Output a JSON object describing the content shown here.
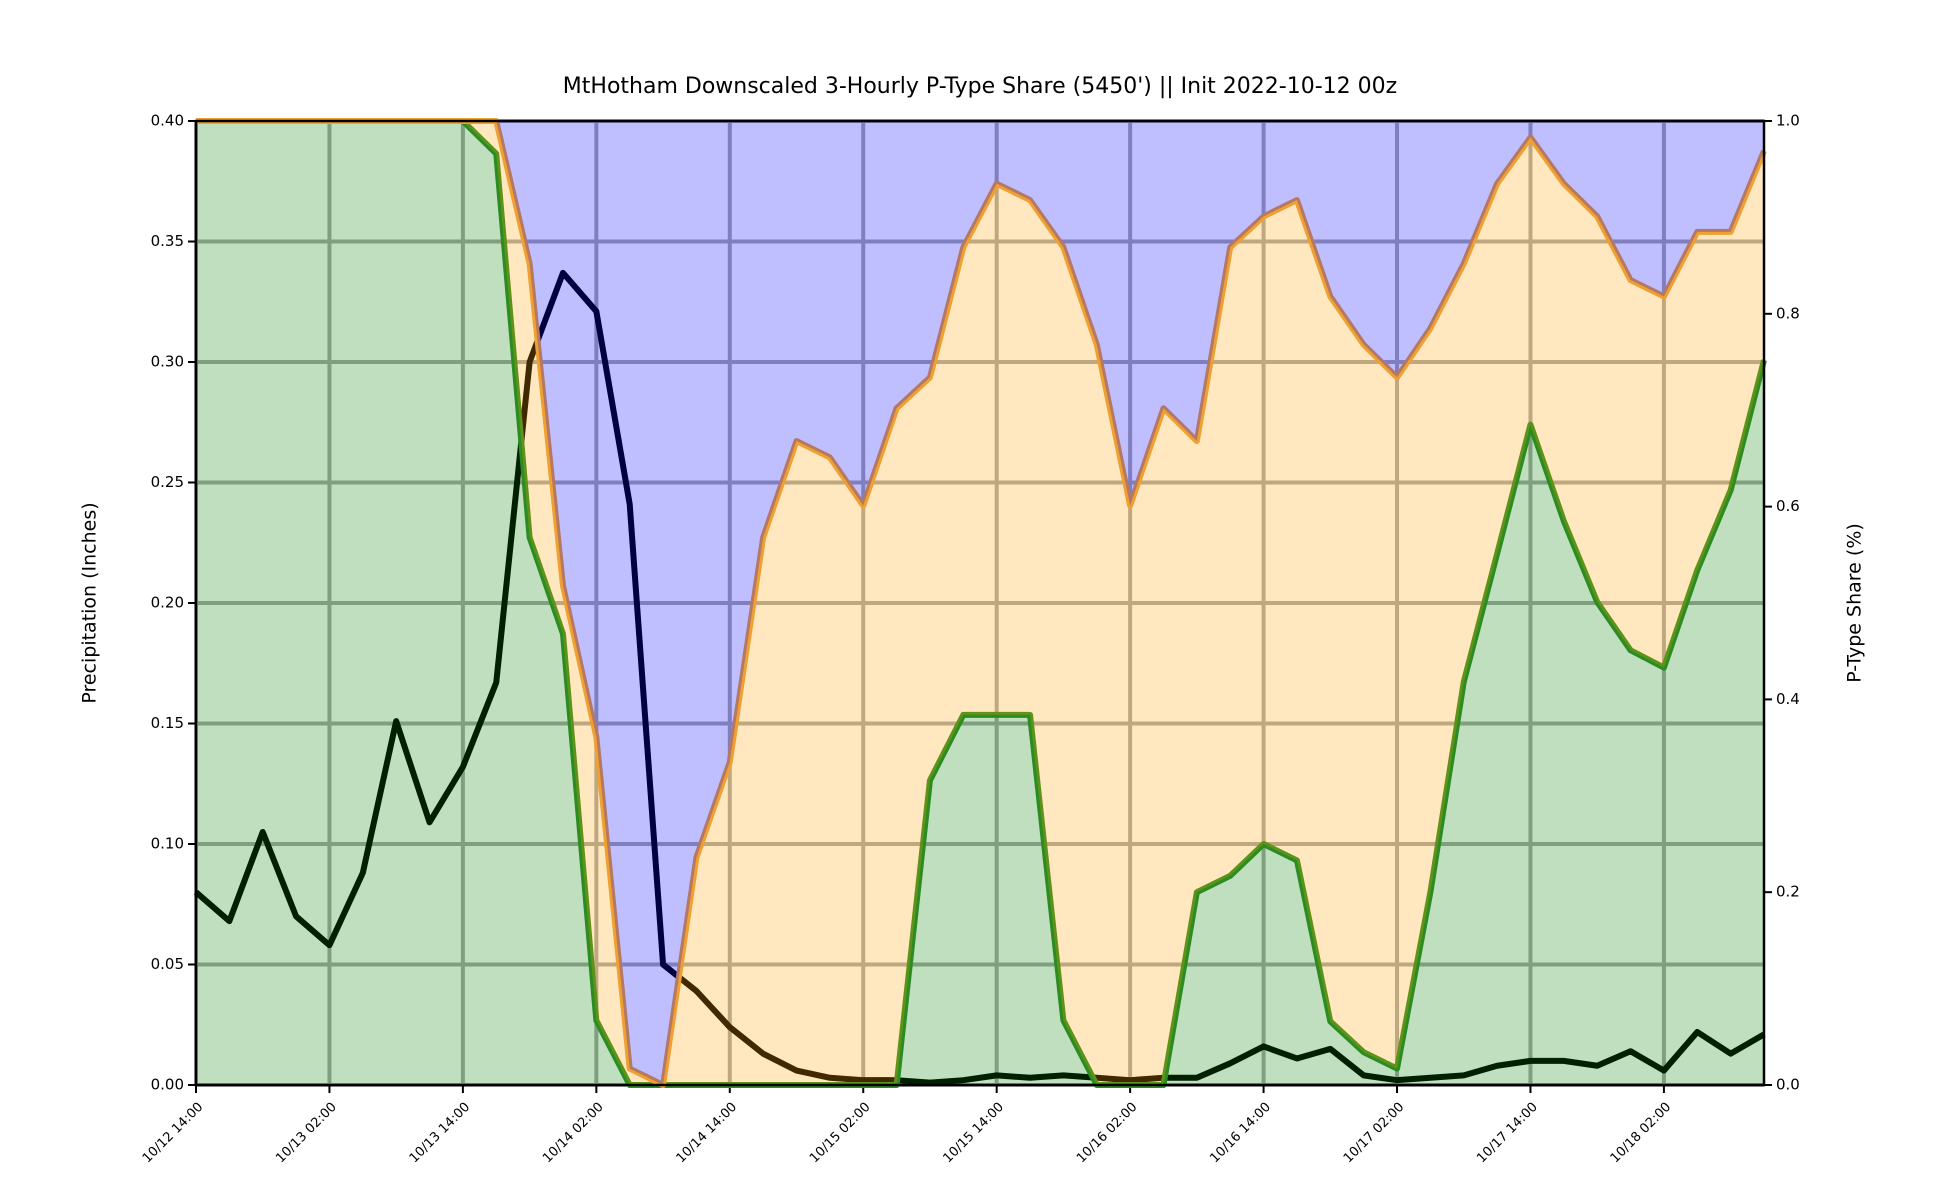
{
  "chart_data": {
    "type": "line",
    "title": "MtHotham Downscaled 3-Hourly P-Type Share (5450') || Init 2022-10-12 00z",
    "y_label": "Precipitation (Inches)",
    "y2_label": "P-Type Share (%)",
    "categories": [
      "10/12 14:00",
      null,
      null,
      null,
      "10/13 02:00",
      null,
      null,
      null,
      "10/13 14:00",
      null,
      null,
      null,
      "10/14 02:00",
      null,
      null,
      null,
      "10/14 14:00",
      null,
      null,
      null,
      "10/15 02:00",
      null,
      null,
      null,
      "10/15 14:00",
      null,
      null,
      null,
      "10/16 02:00",
      null,
      null,
      null,
      "10/16 14:00",
      null,
      null,
      null,
      "10/17 02:00",
      null,
      null,
      null,
      "10/17 14:00",
      null,
      null,
      null,
      "10/18 02:00",
      null,
      null,
      null
    ],
    "ylim": [
      0,
      0.4
    ],
    "yticks": [
      {
        "value": 0,
        "label": "0.00"
      },
      0.05,
      {
        "value": 0.1,
        "label": "0.10"
      },
      0.15,
      {
        "value": 0.2,
        "label": "0.20"
      },
      0.25,
      {
        "value": 0.3,
        "label": "0.30"
      },
      0.35,
      {
        "value": 0.4,
        "label": "0.40"
      }
    ],
    "y2lim": [
      0,
      1
    ],
    "y2ticks": [
      {
        "value": 0,
        "label": "0.0"
      },
      0.2,
      0.4,
      0.6,
      0.8,
      {
        "value": 1,
        "label": "1.0"
      }
    ],
    "grid": true,
    "grid_color": "#aaaaaa",
    "fill_opacity": 0.25,
    "series": [
      {
        "type": "line",
        "color": "#000000",
        "values": [
          0.08,
          0.068,
          0.105,
          0.07,
          0.058,
          0.088,
          0.151,
          0.109,
          0.132,
          0.167,
          0.3,
          0.337,
          0.321,
          0.241,
          0.05,
          0.039,
          0.024,
          0.013,
          0.006,
          0.003,
          0.002,
          0.002,
          0.001,
          0.002,
          0.004,
          0.003,
          0.004,
          0.003,
          0.002,
          0.003,
          0.003,
          0.009,
          0.016,
          0.011,
          0.015,
          0.004,
          0.002,
          0.003,
          0.004,
          0.008,
          0.01,
          0.01,
          0.008,
          0.014,
          0.006,
          0.022,
          0.013,
          0.021
        ]
      },
      {
        "type": "area",
        "axis": "y2",
        "color": "#008000",
        "line_color": "#2a8c22",
        "values": [
          1,
          1,
          1,
          1,
          1,
          1,
          1,
          1,
          1,
          0.966,
          0.568,
          0.468,
          0.067,
          0,
          0,
          0,
          0,
          0,
          0,
          0,
          0,
          0,
          0.316,
          0.384,
          0.384,
          0.384,
          0.067,
          0,
          0,
          0,
          0.2,
          0.217,
          0.25,
          0.233,
          0.066,
          0.034,
          0.017,
          0.2,
          0.418,
          0.551,
          0.685,
          0.585,
          0.501,
          0.451,
          0.433,
          0.534,
          0.617,
          0.752
        ]
      },
      {
        "type": "area",
        "axis": "y2",
        "color": "#ffa500",
        "line_color": "#f0a030",
        "values": [
          0,
          0,
          0,
          0,
          0,
          0,
          0,
          0,
          0,
          0.034,
          0.284,
          0.05,
          0.294,
          0.017,
          0,
          0.236,
          0.335,
          0.568,
          0.668,
          0.651,
          0.601,
          0.702,
          0.418,
          0.485,
          0.551,
          0.534,
          0.802,
          0.768,
          0.601,
          0.702,
          0.468,
          0.652,
          0.651,
          0.685,
          0.752,
          0.734,
          0.717,
          0.585,
          0.434,
          0.384,
          0.298,
          0.35,
          0.4,
          0.384,
          0.385,
          0.351,
          0.268,
          0.217
        ]
      },
      {
        "type": "area",
        "axis": "y2",
        "color": "#0000ff",
        "values": [
          0,
          0,
          0,
          0,
          0,
          0,
          0,
          0,
          0,
          0,
          0.148,
          0.482,
          0.639,
          0.983,
          1,
          0.764,
          0.665,
          0.432,
          0.332,
          0.349,
          0.399,
          0.298,
          0.266,
          0.131,
          0.065,
          0.082,
          0.131,
          0.232,
          0.399,
          0.298,
          0.332,
          0.131,
          0.099,
          0.082,
          0.182,
          0.232,
          0.266,
          0.215,
          0.148,
          0.065,
          0.017,
          0.065,
          0.099,
          0.165,
          0.182,
          0.115,
          0.115,
          0.031
        ]
      }
    ]
  }
}
